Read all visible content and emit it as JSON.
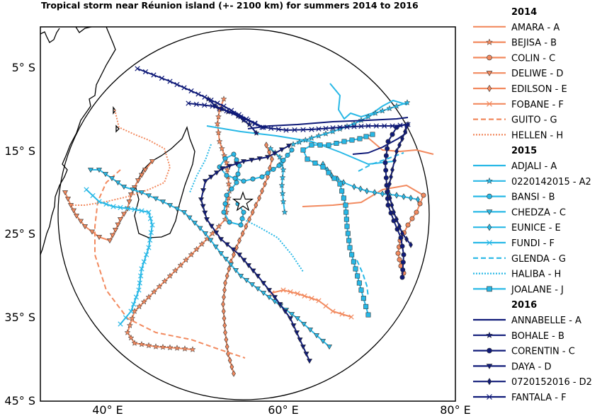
{
  "title": "Tropical storm near Réunion island (+- 2100 km) for summers 2014 to 2016",
  "axes": {
    "y_ticks": [
      {
        "label": "5° S",
        "value": -5
      },
      {
        "label": "15° S",
        "value": -15
      },
      {
        "label": "25° S",
        "value": -25
      },
      {
        "label": "35° S",
        "value": -35
      },
      {
        "label": "45° S",
        "value": -45
      }
    ],
    "x_ticks": [
      {
        "label": "40° E",
        "value": 40
      },
      {
        "label": "60° E",
        "value": 60
      },
      {
        "label": "80° E",
        "value": 80
      }
    ],
    "xlim": [
      32,
      79
    ],
    "ylim": [
      -45,
      0
    ]
  },
  "center_marker": {
    "lon": 55.5,
    "lat": -21.1,
    "symbol": "star"
  },
  "colors": {
    "y2014": "#f28a5f",
    "y2015": "#28b8e6",
    "y2016": "#0f1a78"
  },
  "legend": [
    {
      "year": "2014",
      "color": "#f28a5f",
      "items": [
        {
          "label": "AMARA - A",
          "marker": "none",
          "dash": "solid"
        },
        {
          "label": "BEJISA - B",
          "marker": "star",
          "dash": "solid"
        },
        {
          "label": "COLIN - C",
          "marker": "circle",
          "dash": "solid"
        },
        {
          "label": "DELIWE - D",
          "marker": "tri-down",
          "dash": "solid"
        },
        {
          "label": "EDILSON - E",
          "marker": "diamond",
          "dash": "solid"
        },
        {
          "label": "FOBANE - F",
          "marker": "x",
          "dash": "solid"
        },
        {
          "label": "GUITO - G",
          "marker": "none",
          "dash": "dashed"
        },
        {
          "label": "HELLEN - H",
          "marker": "none",
          "dash": "dotted"
        }
      ]
    },
    {
      "year": "2015",
      "color": "#28b8e6",
      "items": [
        {
          "label": "ADJALI - A",
          "marker": "none",
          "dash": "solid"
        },
        {
          "label": "0220142015 - A2",
          "marker": "star",
          "dash": "solid"
        },
        {
          "label": "BANSI - B",
          "marker": "circle",
          "dash": "solid"
        },
        {
          "label": "CHEDZA - C",
          "marker": "tri-down",
          "dash": "solid"
        },
        {
          "label": "EUNICE - E",
          "marker": "diamond",
          "dash": "solid"
        },
        {
          "label": "FUNDI - F",
          "marker": "x",
          "dash": "solid"
        },
        {
          "label": "GLENDA - G",
          "marker": "none",
          "dash": "dashed"
        },
        {
          "label": "HALIBA - H",
          "marker": "none",
          "dash": "dotted"
        },
        {
          "label": "JOALANE - J",
          "marker": "square",
          "dash": "solid"
        }
      ]
    },
    {
      "year": "2016",
      "color": "#0f1a78",
      "items": [
        {
          "label": "ANNABELLE - A",
          "marker": "none",
          "dash": "solid"
        },
        {
          "label": "BOHALE - B",
          "marker": "star",
          "dash": "solid"
        },
        {
          "label": "CORENTIN - C",
          "marker": "circle",
          "dash": "solid"
        },
        {
          "label": "DAYA - D",
          "marker": "tri-down",
          "dash": "solid"
        },
        {
          "label": "0720152016 - D2",
          "marker": "diamond",
          "dash": "solid"
        },
        {
          "label": "FANTALA - F",
          "marker": "x",
          "dash": "solid"
        }
      ]
    }
  ]
}
